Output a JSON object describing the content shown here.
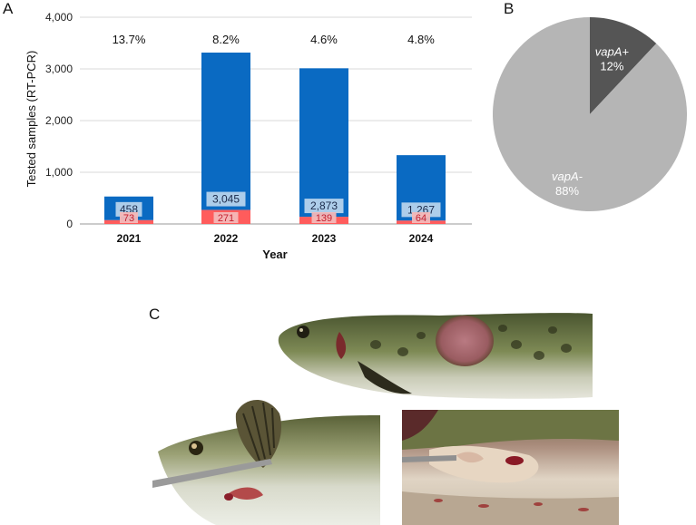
{
  "panels": {
    "a": "A",
    "b": "B",
    "c": "C"
  },
  "chart_data": [
    {
      "type": "bar",
      "stacked": true,
      "categories": [
        "2021",
        "2022",
        "2023",
        "2024"
      ],
      "series": [
        {
          "values": [
            73,
            271,
            139,
            64
          ],
          "color": "#ff5c5c"
        },
        {
          "values": [
            458,
            3045,
            2873,
            1267
          ],
          "color": "#0a6ac2"
        }
      ],
      "percent_labels": [
        "13.7%",
        "8.2%",
        "4.6%",
        "4.8%"
      ],
      "xlabel": "Year",
      "ylabel": "Tested samples (RT-PCR)",
      "ylim": [
        0,
        4000
      ],
      "yticks": [
        "0",
        "1,000",
        "2,000",
        "3,000",
        "4,000"
      ],
      "ytick_values": [
        0,
        1000,
        2000,
        3000,
        4000
      ],
      "grid": true
    },
    {
      "type": "pie",
      "slices": [
        {
          "name": "vapA+",
          "value": 12,
          "label": "12%",
          "color": "#555555"
        },
        {
          "name": "vapA-",
          "value": 88,
          "label": "88%",
          "color": "#b5b5b5"
        }
      ]
    }
  ],
  "photos": [
    {
      "name": "fish-lateral-lesion-photo"
    },
    {
      "name": "fish-gill-cover-lifted-photo"
    },
    {
      "name": "fish-opened-body-cavity-photo"
    }
  ]
}
